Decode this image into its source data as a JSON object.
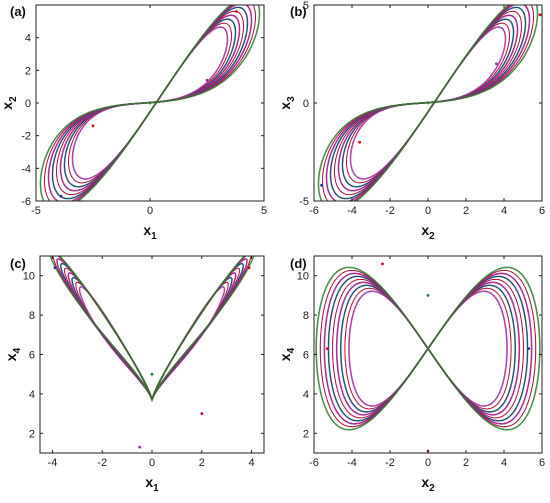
{
  "chart_data": [
    {
      "panel": "(a)",
      "type": "line",
      "xlabel": "x",
      "xlabel_sub": "1",
      "ylabel": "x",
      "ylabel_sub": "2",
      "xlim": [
        -5,
        5
      ],
      "ylim": [
        -6,
        6
      ],
      "xticks": [
        -5,
        0,
        5
      ],
      "yticks": [
        -6,
        -4,
        -2,
        0,
        2,
        4
      ],
      "colors": [
        "#d9001b",
        "#1f2fa3",
        "#2e7d32",
        "#a0289a"
      ],
      "attractor": {
        "shape": "two-wing tilted",
        "wings": [
          {
            "cx": 2.2,
            "cy": 3.5
          },
          {
            "cx": -2.2,
            "cy": -3.5
          }
        ],
        "sample_points": [
          [
            3.8,
            5.6
          ],
          [
            -3.9,
            -5.7
          ],
          [
            0.0,
            0.0
          ],
          [
            2.5,
            1.4
          ],
          [
            -2.5,
            -1.4
          ]
        ]
      }
    },
    {
      "panel": "(b)",
      "type": "line",
      "xlabel": "x",
      "xlabel_sub": "2",
      "ylabel": "x",
      "ylabel_sub": "3",
      "xlim": [
        -6,
        6
      ],
      "ylim": [
        -5,
        5
      ],
      "xticks": [
        -6,
        -4,
        -2,
        0,
        2,
        4,
        6
      ],
      "yticks": [
        -5,
        0,
        5
      ],
      "colors": [
        "#d9001b",
        "#1f2fa3",
        "#2e7d32",
        "#a0289a"
      ],
      "attractor": {
        "shape": "two-wing tilted",
        "wings": [
          {
            "cx": 2.3,
            "cy": 3.1
          },
          {
            "cx": -2.3,
            "cy": -3.1
          }
        ],
        "sample_points": [
          [
            5.9,
            4.5
          ],
          [
            -5.6,
            -4.2
          ],
          [
            0.0,
            0.0
          ],
          [
            3.6,
            2.0
          ],
          [
            -3.6,
            -2.0
          ]
        ]
      }
    },
    {
      "panel": "(c)",
      "type": "line",
      "xlabel": "x",
      "xlabel_sub": "1",
      "ylabel": "x",
      "ylabel_sub": "4",
      "xlim": [
        -4.5,
        4.5
      ],
      "ylim": [
        1,
        11
      ],
      "xticks": [
        -4,
        -2,
        0,
        2,
        4
      ],
      "yticks": [
        2,
        4,
        6,
        8,
        10
      ],
      "colors": [
        "#d9001b",
        "#1f2fa3",
        "#2e7d32",
        "#a0289a"
      ],
      "attractor": {
        "shape": "butterfly",
        "wings": [
          {
            "cx": 2.0,
            "cy": 6.7
          },
          {
            "cx": -2.0,
            "cy": 6.7
          }
        ],
        "sample_points": [
          [
            3.9,
            10.4
          ],
          [
            -3.9,
            10.4
          ],
          [
            0.0,
            5.0
          ],
          [
            -0.5,
            1.3
          ],
          [
            2.0,
            3.0
          ]
        ]
      }
    },
    {
      "panel": "(d)",
      "type": "line",
      "xlabel": "x",
      "xlabel_sub": "2",
      "ylabel": "x",
      "ylabel_sub": "4",
      "xlim": [
        -6,
        6
      ],
      "ylim": [
        1,
        11
      ],
      "xticks": [
        -6,
        -4,
        -2,
        0,
        2,
        4,
        6
      ],
      "yticks": [
        2,
        4,
        6,
        8,
        10
      ],
      "colors": [
        "#d9001b",
        "#1f2fa3",
        "#2e7d32",
        "#a0289a"
      ],
      "attractor": {
        "shape": "figure-eight",
        "wings": [
          {
            "cx": -2.4,
            "cy": 6.3
          },
          {
            "cx": 2.4,
            "cy": 6.3
          }
        ],
        "sample_points": [
          [
            -5.3,
            6.3
          ],
          [
            5.3,
            6.3
          ],
          [
            0.0,
            9.0
          ],
          [
            0.0,
            1.1
          ],
          [
            -2.4,
            10.6
          ]
        ]
      }
    }
  ]
}
